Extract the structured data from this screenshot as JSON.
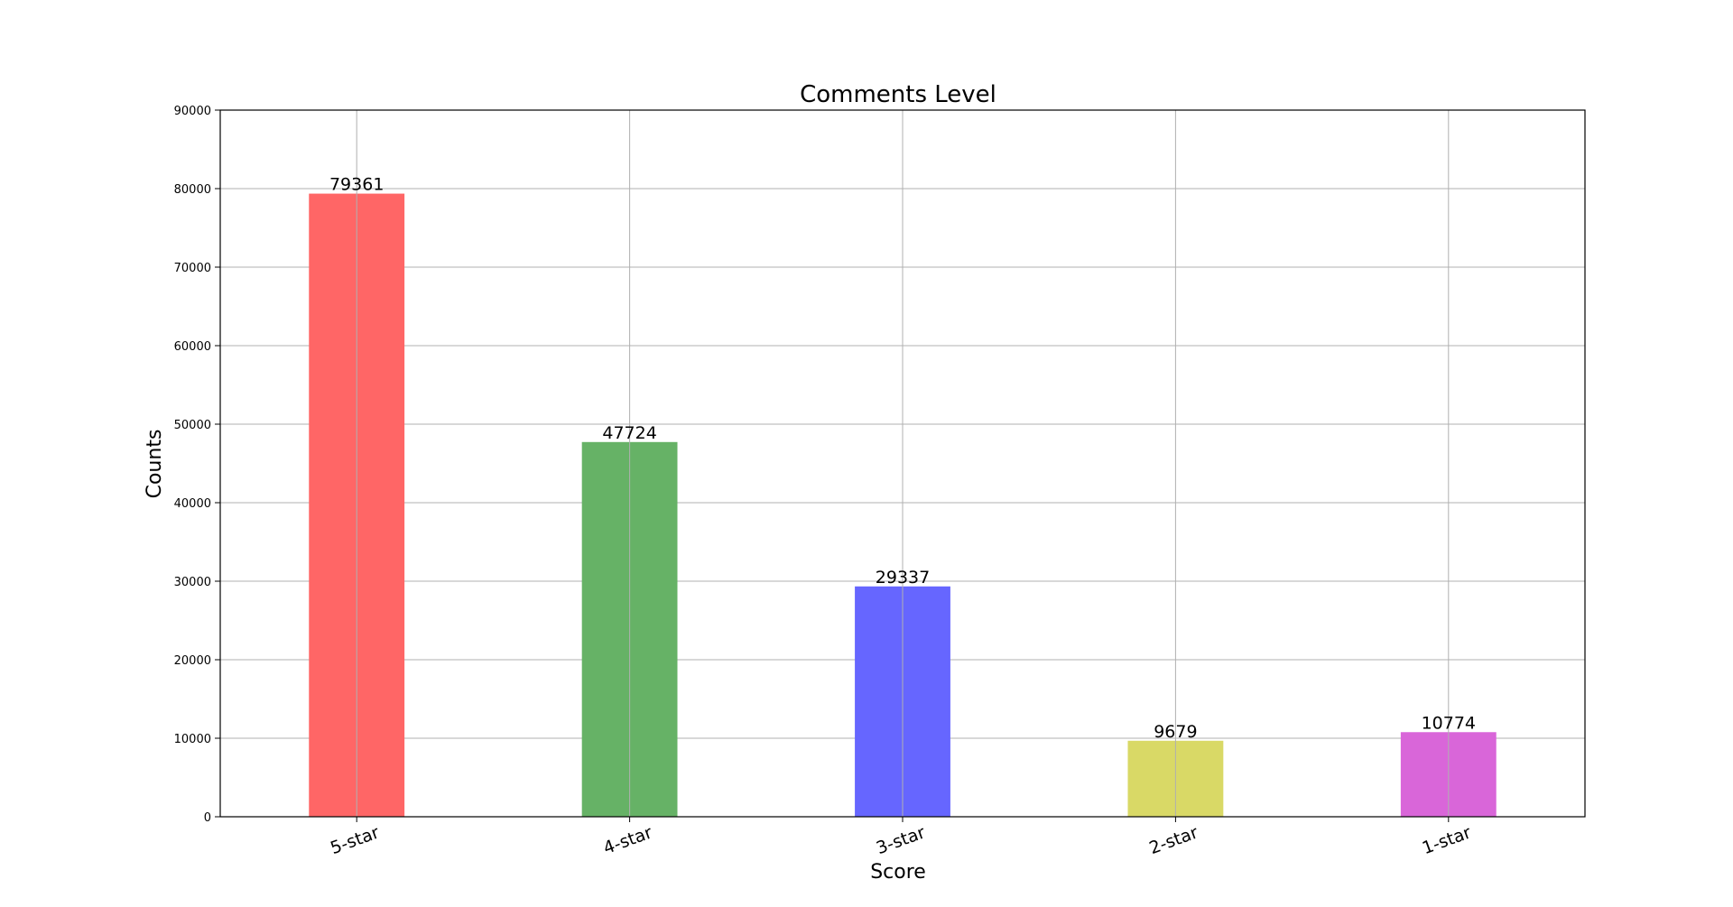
{
  "chart_data": {
    "type": "bar",
    "title": "Comments Level",
    "xlabel": "Score",
    "ylabel": "Counts",
    "categories": [
      "5-star",
      "4-star",
      "3-star",
      "2-star",
      "1-star"
    ],
    "values": [
      79361,
      47724,
      29337,
      9679,
      10774
    ],
    "data_labels": [
      "79361",
      "47724",
      "29337",
      "9679",
      "10774"
    ],
    "colors": [
      "#ff6666",
      "#66b266",
      "#6666ff",
      "#d9d966",
      "#d966d9"
    ],
    "ylim": [
      0,
      90000
    ],
    "yticks": [
      0,
      10000,
      20000,
      30000,
      40000,
      50000,
      60000,
      70000,
      80000,
      90000
    ],
    "ytick_labels": [
      "0",
      "10000",
      "20000",
      "30000",
      "40000",
      "50000",
      "60000",
      "70000",
      "80000",
      "90000"
    ],
    "grid": true,
    "legend": "none"
  }
}
